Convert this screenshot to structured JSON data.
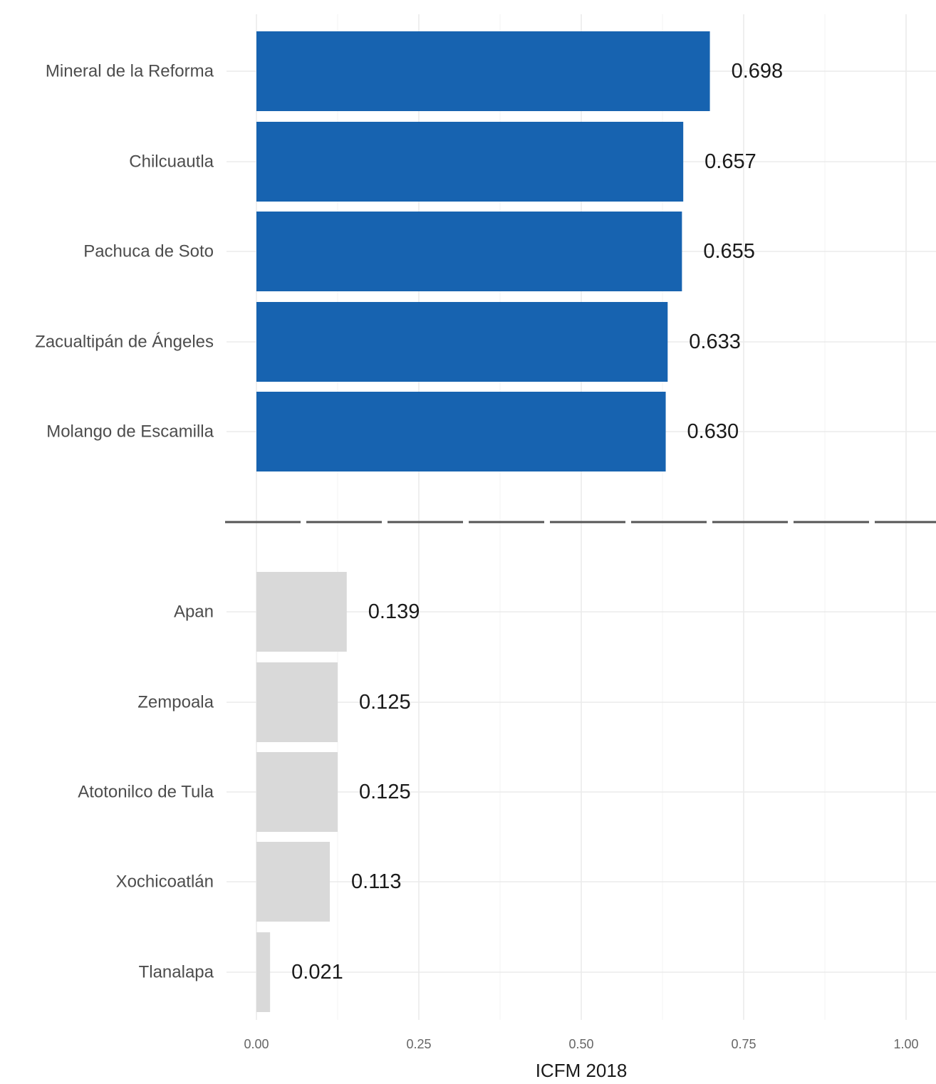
{
  "chart_data": {
    "type": "bar",
    "orientation": "horizontal",
    "xlabel": "ICFM 2018",
    "xlim": [
      0,
      1
    ],
    "xticks": [
      "0.00",
      "0.25",
      "0.50",
      "0.75",
      "1.00"
    ],
    "grid": true,
    "separator": "dashed",
    "colors": {
      "top": "#1763b0",
      "bottom": "#d9d9d9"
    },
    "groups": [
      {
        "color_key": "top",
        "categories": [
          "Mineral de la Reforma",
          "Chilcuautla",
          "Pachuca de Soto",
          "Zacualtipán de Ángeles",
          "Molango de Escamilla"
        ],
        "values": [
          0.698,
          0.657,
          0.655,
          0.633,
          0.63
        ],
        "labels": [
          "0.698",
          "0.657",
          "0.655",
          "0.633",
          "0.630"
        ]
      },
      {
        "color_key": "bottom",
        "categories": [
          "Apan",
          "Zempoala",
          "Atotonilco de Tula",
          "Xochicoatlán",
          "Tlanalapa"
        ],
        "values": [
          0.139,
          0.125,
          0.125,
          0.113,
          0.021
        ],
        "labels": [
          "0.139",
          "0.125",
          "0.125",
          "0.113",
          "0.021"
        ]
      }
    ]
  }
}
